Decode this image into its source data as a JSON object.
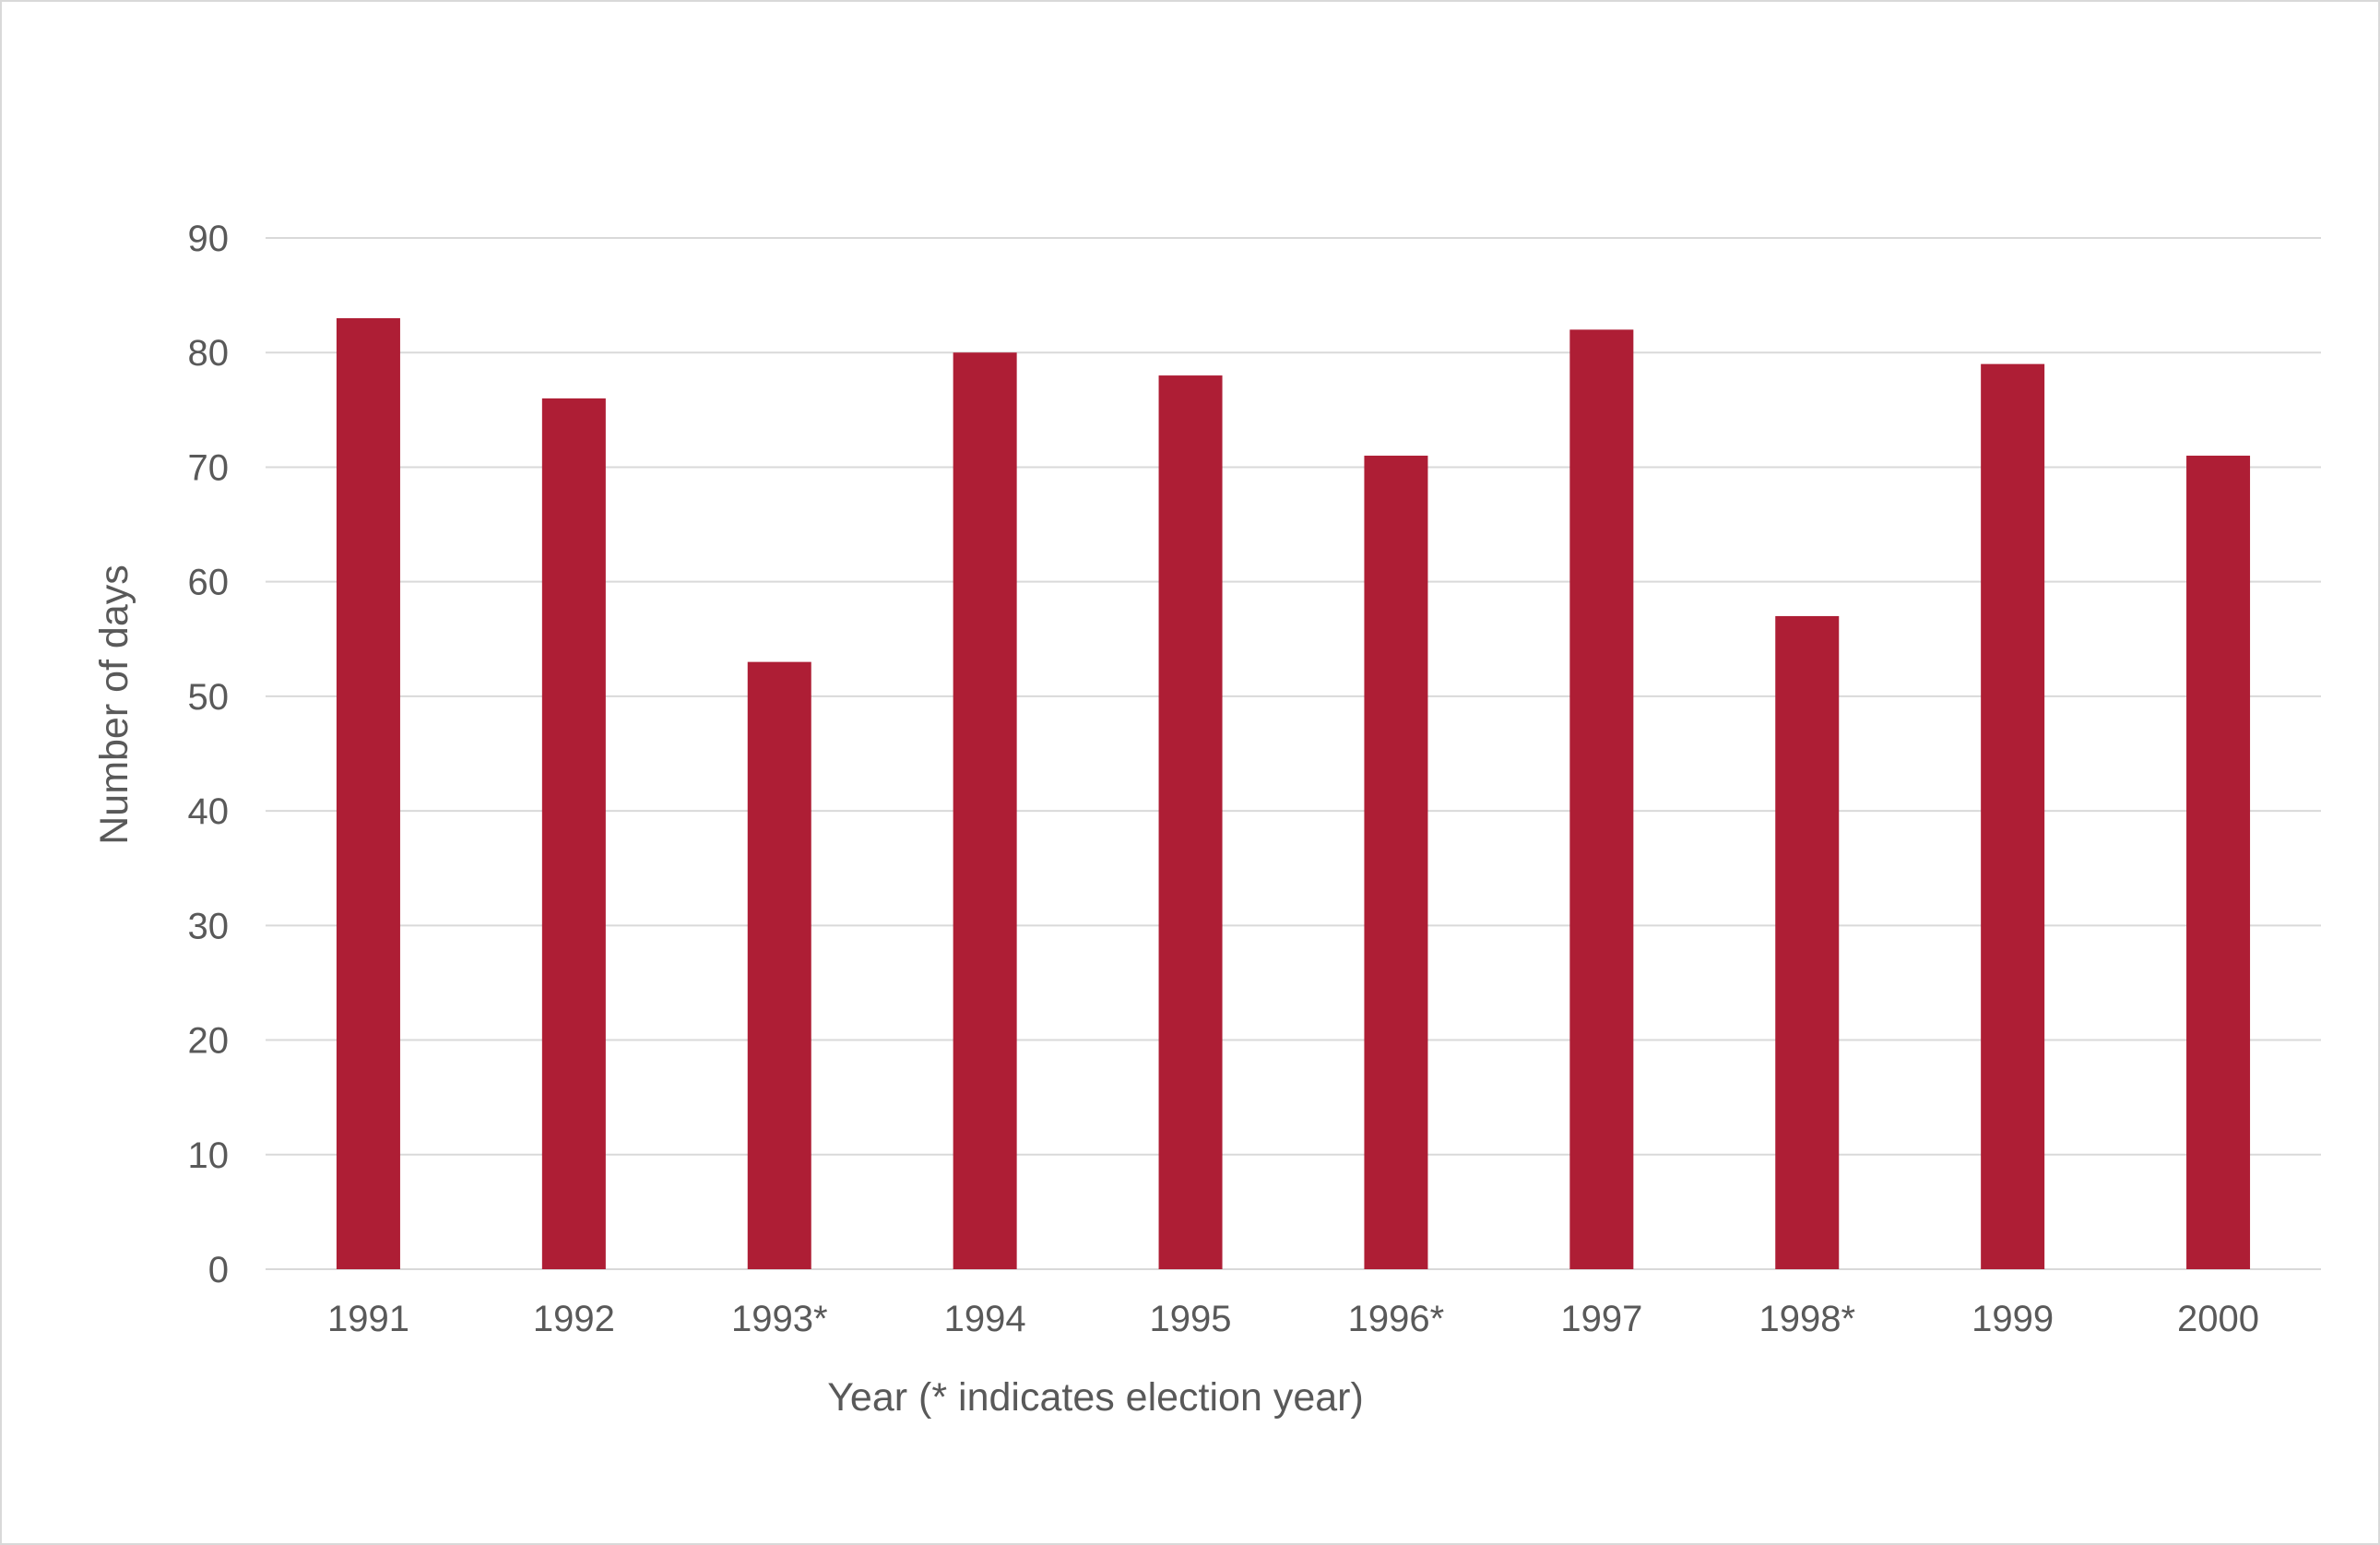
{
  "chart_data": {
    "type": "bar",
    "title": "",
    "xlabel": "Year (* indicates election year)",
    "ylabel": "Number of days",
    "categories": [
      "1991",
      "1992",
      "1993*",
      "1994",
      "1995",
      "1996*",
      "1997",
      "1998*",
      "1999",
      "2000"
    ],
    "values": [
      83,
      76,
      53,
      80,
      78,
      71,
      82,
      57,
      79,
      71
    ],
    "ylim": [
      0,
      90
    ],
    "yticks": [
      0,
      10,
      20,
      30,
      40,
      50,
      60,
      70,
      80,
      90
    ],
    "grid": true,
    "legend": "none",
    "bar_color": "#AE1E35",
    "grid_color": "#d9d9d9"
  }
}
